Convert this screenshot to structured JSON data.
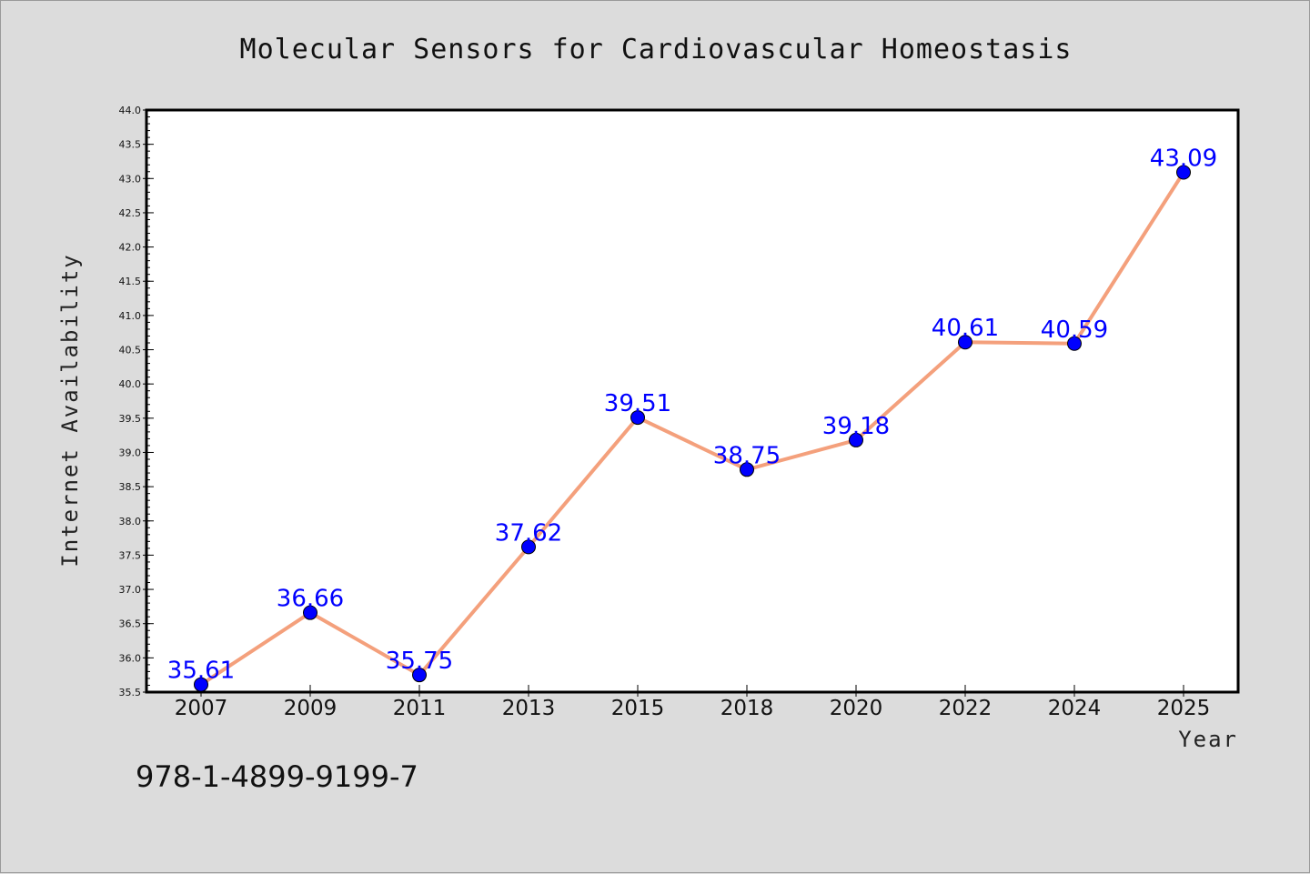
{
  "chart_data": {
    "type": "line",
    "title": "Molecular Sensors for Cardiovascular Homeostasis",
    "xlabel": "Year",
    "ylabel": "Internet Availability",
    "categories": [
      "2007",
      "2009",
      "2011",
      "2013",
      "2015",
      "2018",
      "2020",
      "2022",
      "2024",
      "2025"
    ],
    "series": [
      {
        "values": [
          35.61,
          36.66,
          35.75,
          37.62,
          39.51,
          38.75,
          39.18,
          40.61,
          40.59,
          43.09
        ],
        "data_labels": [
          "35.61",
          "36.66",
          "35.75",
          "37.62",
          "39.51",
          "38.75",
          "39.18",
          "40.61",
          "40.59",
          "43.09"
        ]
      }
    ],
    "ylim": [
      35.5,
      44.0
    ],
    "yticks": [
      "35.5",
      "36.0",
      "36.5",
      "37.0",
      "37.5",
      "38.0",
      "38.5",
      "39.0",
      "39.5",
      "40.0",
      "40.5",
      "41.0",
      "41.5",
      "42.0",
      "42.5",
      "43.0",
      "43.5",
      "44.0"
    ],
    "grid": false,
    "legend": "none",
    "colors": {
      "line": "#f4a07c",
      "marker": "#0000ff",
      "label": "#0000ff",
      "background": "#dcdcdc",
      "plot_background": "#ffffff"
    }
  },
  "footer": {
    "isbn": "978-1-4899-9199-7"
  }
}
